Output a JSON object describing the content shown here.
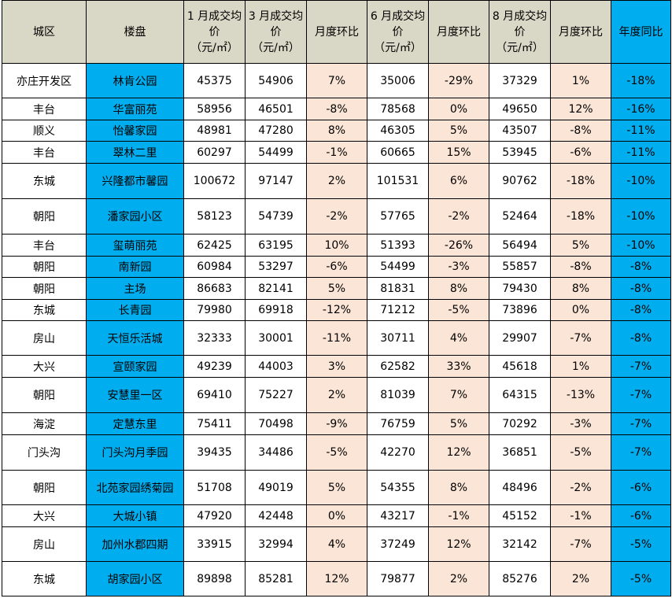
{
  "headers": {
    "district": "城区",
    "project": "楼盘",
    "jan_price_l1": "1 月成交均",
    "jan_price_l2": "价",
    "jan_price_l3": "（元/㎡）",
    "mar_price_l1": "3 月成交均",
    "mar_price_l2": "价",
    "mar_price_l3": "（元/㎡）",
    "mom1": "月度环比",
    "jun_price_l1": "6 月成交均",
    "jun_price_l2": "价",
    "jun_price_l3": "（元/㎡）",
    "mom2": "月度环比",
    "aug_price_l1": "8 月成交均",
    "aug_price_l2": "价",
    "aug_price_l3": "（元/㎡）",
    "mom3": "月度环比",
    "yoy": "年度同比"
  },
  "rows": [
    {
      "district": "亦庄开发区",
      "project": "林肯公园",
      "jan": "45375",
      "mar": "54906",
      "mom1": "7%",
      "jun": "35006",
      "mom2": "-29%",
      "aug": "37329",
      "mom3": "1%",
      "yoy": "-18%"
    },
    {
      "district": "丰台",
      "project": "华富丽苑",
      "jan": "58956",
      "mar": "46501",
      "mom1": "-8%",
      "jun": "78568",
      "mom2": "0%",
      "aug": "49650",
      "mom3": "12%",
      "yoy": "-16%"
    },
    {
      "district": "顺义",
      "project": "怡馨家园",
      "jan": "48981",
      "mar": "47280",
      "mom1": "8%",
      "jun": "46305",
      "mom2": "5%",
      "aug": "43507",
      "mom3": "-8%",
      "yoy": "-11%"
    },
    {
      "district": "丰台",
      "project": "翠林二里",
      "jan": "60297",
      "mar": "54499",
      "mom1": "-1%",
      "jun": "60665",
      "mom2": "15%",
      "aug": "53945",
      "mom3": "-6%",
      "yoy": "-11%"
    },
    {
      "district": "东城",
      "project": "兴隆都市馨园",
      "jan": "100672",
      "mar": "97147",
      "mom1": "2%",
      "jun": "101531",
      "mom2": "6%",
      "aug": "90762",
      "mom3": "-18%",
      "yoy": "-10%"
    },
    {
      "district": "朝阳",
      "project": "潘家园小区",
      "jan": "58123",
      "mar": "54739",
      "mom1": "-2%",
      "jun": "57765",
      "mom2": "-2%",
      "aug": "52464",
      "mom3": "-18%",
      "yoy": "-10%"
    },
    {
      "district": "丰台",
      "project": "玺萌丽苑",
      "jan": "62425",
      "mar": "63195",
      "mom1": "10%",
      "jun": "51393",
      "mom2": "-26%",
      "aug": "56494",
      "mom3": "5%",
      "yoy": "-10%"
    },
    {
      "district": "朝阳",
      "project": "南新园",
      "jan": "60984",
      "mar": "53297",
      "mom1": "-6%",
      "jun": "54499",
      "mom2": "-3%",
      "aug": "55857",
      "mom3": "-8%",
      "yoy": "-8%"
    },
    {
      "district": "朝阳",
      "project": "主场",
      "jan": "86683",
      "mar": "82141",
      "mom1": "5%",
      "jun": "81831",
      "mom2": "8%",
      "aug": "79430",
      "mom3": "8%",
      "yoy": "-8%"
    },
    {
      "district": "东城",
      "project": "长青园",
      "jan": "79980",
      "mar": "69918",
      "mom1": "-12%",
      "jun": "71212",
      "mom2": "-5%",
      "aug": "73896",
      "mom3": "0%",
      "yoy": "-8%"
    },
    {
      "district": "房山",
      "project": "天恒乐活城",
      "jan": "32333",
      "mar": "30001",
      "mom1": "-11%",
      "jun": "30711",
      "mom2": "4%",
      "aug": "29907",
      "mom3": "-7%",
      "yoy": "-8%"
    },
    {
      "district": "大兴",
      "project": "宣颐家园",
      "jan": "49239",
      "mar": "44003",
      "mom1": "3%",
      "jun": "62582",
      "mom2": "33%",
      "aug": "45618",
      "mom3": "1%",
      "yoy": "-7%"
    },
    {
      "district": "朝阳",
      "project": "安慧里一区",
      "jan": "69410",
      "mar": "75227",
      "mom1": "2%",
      "jun": "81039",
      "mom2": "7%",
      "aug": "64315",
      "mom3": "-13%",
      "yoy": "-7%"
    },
    {
      "district": "海淀",
      "project": "定慧东里",
      "jan": "75411",
      "mar": "70498",
      "mom1": "-9%",
      "jun": "76759",
      "mom2": "5%",
      "aug": "70292",
      "mom3": "-3%",
      "yoy": "-7%"
    },
    {
      "district": "门头沟",
      "project": "门头沟月季园",
      "jan": "39435",
      "mar": "34486",
      "mom1": "-5%",
      "jun": "42270",
      "mom2": "12%",
      "aug": "36851",
      "mom3": "-5%",
      "yoy": "-7%"
    },
    {
      "district": "朝阳",
      "project": "北苑家园绣菊园",
      "jan": "51708",
      "mar": "49019",
      "mom1": "5%",
      "jun": "54355",
      "mom2": "8%",
      "aug": "48496",
      "mom3": "-2%",
      "yoy": "-6%"
    },
    {
      "district": "大兴",
      "project": "大城小镇",
      "jan": "47920",
      "mar": "42448",
      "mom1": "0%",
      "jun": "43217",
      "mom2": "-1%",
      "aug": "45152",
      "mom3": "-1%",
      "yoy": "-6%"
    },
    {
      "district": "房山",
      "project": "加州水郡四期",
      "jan": "33915",
      "mar": "32994",
      "mom1": "4%",
      "jun": "37249",
      "mom2": "12%",
      "aug": "32142",
      "mom3": "-7%",
      "yoy": "-5%"
    },
    {
      "district": "东城",
      "project": "胡家园小区",
      "jan": "89898",
      "mar": "85281",
      "mom1": "12%",
      "jun": "79877",
      "mom2": "2%",
      "aug": "85276",
      "mom3": "2%",
      "yoy": "-5%"
    }
  ]
}
